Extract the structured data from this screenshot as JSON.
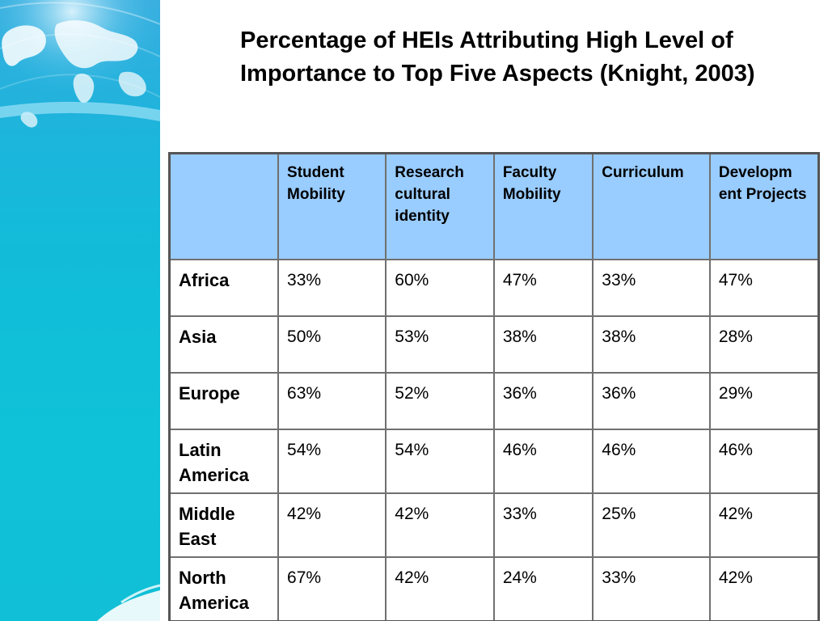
{
  "title": "Percentage of HEIs Attributing High Level of Importance to Top Five Aspects (Knight, 2003)",
  "table": {
    "corner": "",
    "headers": [
      "Student Mobility",
      "Research cultural identity",
      "Faculty Mobility",
      "Curriculum",
      "Developm ent Projects"
    ],
    "rows": [
      {
        "region": "Africa",
        "values": [
          "33%",
          "60%",
          "47%",
          "33%",
          "47%"
        ]
      },
      {
        "region": "Asia",
        "values": [
          "50%",
          "53%",
          "38%",
          "38%",
          "28%"
        ]
      },
      {
        "region": "Europe",
        "values": [
          "63%",
          "52%",
          "36%",
          "36%",
          "29%"
        ]
      },
      {
        "region": "Latin America",
        "values": [
          "54%",
          "54%",
          "46%",
          "46%",
          "46%"
        ]
      },
      {
        "region": "Middle East",
        "values": [
          "42%",
          "42%",
          "33%",
          "25%",
          "42%"
        ]
      },
      {
        "region": "North America",
        "values": [
          "67%",
          "42%",
          "24%",
          "33%",
          "42%"
        ]
      }
    ]
  },
  "colors": {
    "header_bg": "#99ccff",
    "side_panel": "#12bcd9",
    "border": "#707070"
  },
  "icons": [
    "world-map-icon",
    "wave-decoration"
  ]
}
